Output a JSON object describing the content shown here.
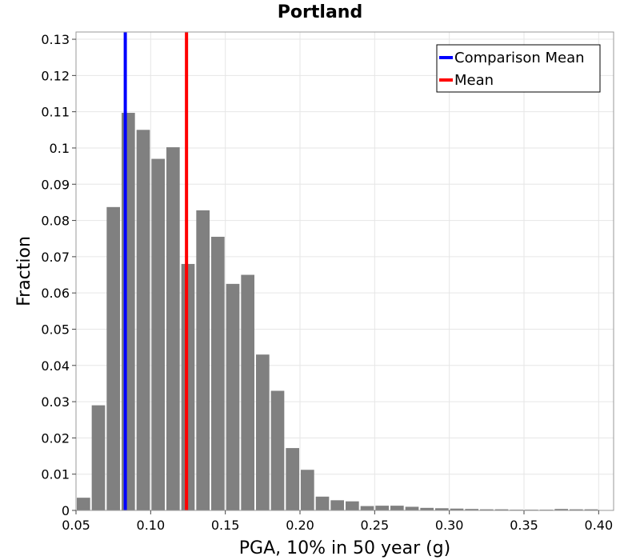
{
  "chart_data": {
    "type": "bar",
    "title": "Portland",
    "xlabel": "PGA, 10% in 50 year (g)",
    "ylabel": "Fraction",
    "xlim": [
      0.05,
      0.41
    ],
    "ylim": [
      0,
      0.132
    ],
    "xticks": [
      "0.05",
      "0.10",
      "0.15",
      "0.20",
      "0.25",
      "0.30",
      "0.35",
      "0.40"
    ],
    "xtick_values": [
      0.05,
      0.1,
      0.15,
      0.2,
      0.25,
      0.3,
      0.35,
      0.4
    ],
    "yticks": [
      "0",
      "0.01",
      "0.02",
      "0.03",
      "0.04",
      "0.05",
      "0.06",
      "0.07",
      "0.08",
      "0.09",
      "0.1",
      "0.11",
      "0.12",
      "0.13"
    ],
    "ytick_values": [
      0,
      0.01,
      0.02,
      0.03,
      0.04,
      0.05,
      0.06,
      0.07,
      0.08,
      0.09,
      0.1,
      0.11,
      0.12,
      0.13
    ],
    "grid": true,
    "bar_color": "#808080",
    "bin_width": 0.01,
    "bin_starts": [
      0.05,
      0.06,
      0.07,
      0.08,
      0.09,
      0.1,
      0.11,
      0.12,
      0.13,
      0.14,
      0.15,
      0.16,
      0.17,
      0.18,
      0.19,
      0.2,
      0.21,
      0.22,
      0.23,
      0.24,
      0.25,
      0.26,
      0.27,
      0.28,
      0.29,
      0.3,
      0.31,
      0.32,
      0.33,
      0.34,
      0.35,
      0.36,
      0.37,
      0.38,
      0.39
    ],
    "values": [
      0.0035,
      0.029,
      0.0837,
      0.1097,
      0.105,
      0.097,
      0.1002,
      0.068,
      0.0828,
      0.0755,
      0.0625,
      0.065,
      0.043,
      0.033,
      0.0172,
      0.0112,
      0.0038,
      0.0028,
      0.0025,
      0.0012,
      0.0013,
      0.0013,
      0.001,
      0.0007,
      0.0006,
      0.0005,
      0.0004,
      0.0003,
      0.0003,
      0.0002,
      0.0002,
      0.0002,
      0.0004,
      0.0003,
      0.0003
    ],
    "lines": [
      {
        "name": "Comparison Mean",
        "x": 0.083,
        "color": "#0000ff"
      },
      {
        "name": "Mean",
        "x": 0.124,
        "color": "#ff0000"
      }
    ],
    "legend_position": "top-right"
  }
}
